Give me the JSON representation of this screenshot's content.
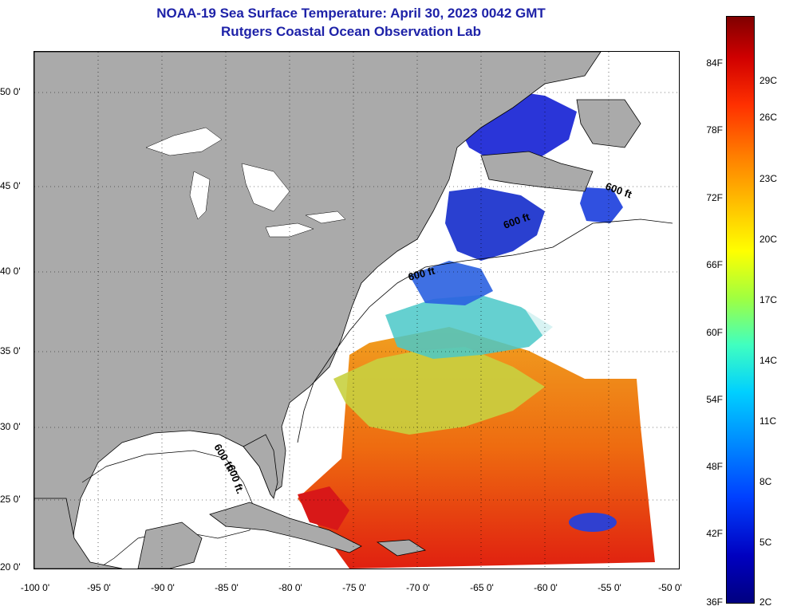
{
  "header": {
    "title": "NOAA-19 Sea Surface Temperature:  April 30, 2023 0042 GMT",
    "subtitle": "Rutgers Coastal Ocean Observation Lab"
  },
  "map": {
    "lat_labels": [
      "50 0'",
      "45 0'",
      "40 0'",
      "35 0'",
      "30 0'",
      "25 0'",
      "20 0'"
    ],
    "lon_labels": [
      "-100 0'",
      "-95 0'",
      "-90 0'",
      "-85 0'",
      "-80 0'",
      "-75 0'",
      "-70 0'",
      "-65 0'",
      "-60 0'",
      "-55 0'",
      "-50 0'"
    ],
    "contour_labels": [
      "600 ft.",
      "600 ft.",
      "600 ft",
      "600 ft",
      "600 ft"
    ],
    "colors": {
      "land": "#aaaaaa",
      "ocean_no_data": "#ffffff"
    }
  },
  "colorbar": {
    "fahrenheit": [
      "84F",
      "78F",
      "72F",
      "66F",
      "60F",
      "54F",
      "48F",
      "42F",
      "36F"
    ],
    "celsius": [
      "29C",
      "26C",
      "23C",
      "20C",
      "17C",
      "14C",
      "11C",
      "8C",
      "5C",
      "2C"
    ]
  }
}
